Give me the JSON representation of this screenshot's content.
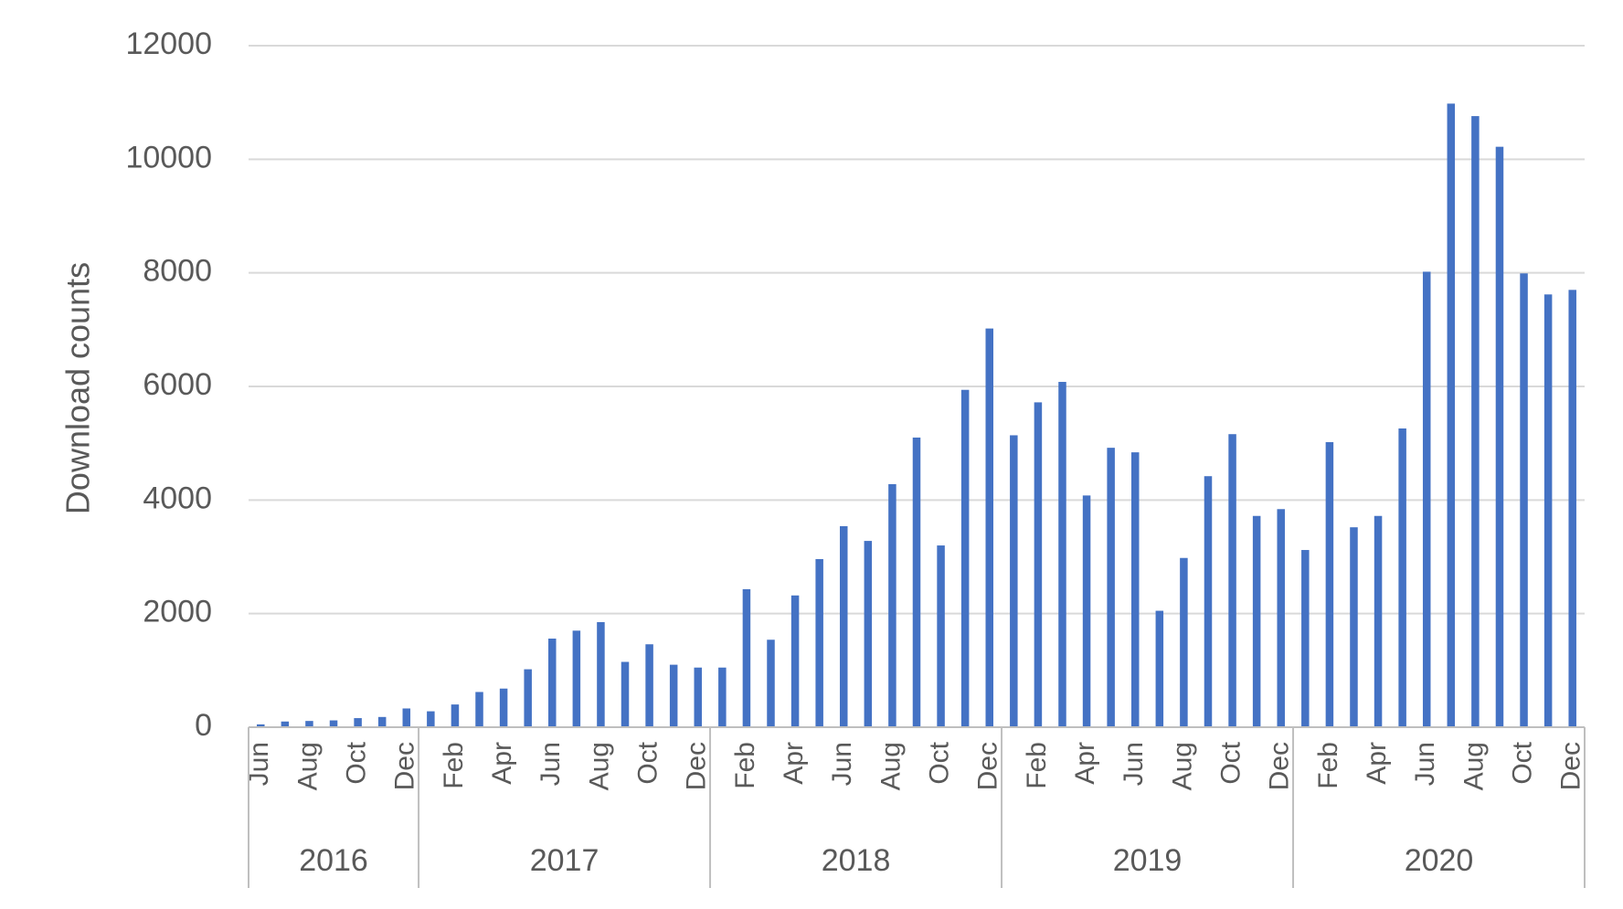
{
  "chart_data": {
    "type": "bar",
    "title": "",
    "xlabel": "",
    "ylabel": "Download counts",
    "ylim": [
      0,
      12000
    ],
    "yticks": [
      0,
      2000,
      4000,
      6000,
      8000,
      10000,
      12000
    ],
    "grid": true,
    "colors": {
      "bar": "#4472C4",
      "grid": "#d9d9d9",
      "axis": "#bfbfbf",
      "text": "#595959"
    },
    "categories": [
      "Jun",
      "Jul",
      "Aug",
      "Sep",
      "Oct",
      "Nov",
      "Dec",
      "Jan",
      "Feb",
      "Mar",
      "Apr",
      "May",
      "Jun",
      "Jul",
      "Aug",
      "Sep",
      "Oct",
      "Nov",
      "Dec",
      "Jan",
      "Feb",
      "Mar",
      "Apr",
      "May",
      "Jun",
      "Jul",
      "Aug",
      "Sep",
      "Oct",
      "Nov",
      "Dec",
      "Jan",
      "Feb",
      "Mar",
      "Apr",
      "May",
      "Jun",
      "Jul",
      "Aug",
      "Sep",
      "Oct",
      "Nov",
      "Dec",
      "Jan",
      "Feb",
      "Mar",
      "Apr",
      "May",
      "Jun",
      "Jul",
      "Aug",
      "Sep",
      "Oct",
      "Nov",
      "Dec"
    ],
    "shown_month_labels": [
      "Jun",
      "Aug",
      "Oct",
      "Dec",
      "Feb",
      "Apr",
      "Jun",
      "Aug",
      "Oct",
      "Dec",
      "Feb",
      "Apr",
      "Jun",
      "Aug",
      "Oct",
      "Dec",
      "Feb",
      "Apr",
      "Jun",
      "Aug",
      "Oct",
      "Dec",
      "Feb",
      "Apr",
      "Jun",
      "Aug",
      "Oct",
      "Dec"
    ],
    "years": [
      {
        "label": "2016",
        "count": 7
      },
      {
        "label": "2017",
        "count": 12
      },
      {
        "label": "2018",
        "count": 12
      },
      {
        "label": "2019",
        "count": 12
      },
      {
        "label": "2020",
        "count": 12
      }
    ],
    "series": [
      {
        "values": [
          50,
          100,
          110,
          120,
          160,
          180,
          330,
          280,
          400,
          620,
          680,
          1020,
          1560,
          1700,
          1850,
          1150,
          1460,
          1100,
          1050,
          1050,
          2430,
          1540,
          2320,
          2960,
          3540,
          3280,
          4280,
          5100,
          3200,
          5940,
          7020,
          5140,
          5720,
          6080,
          4080,
          4920,
          4840,
          2050,
          2980,
          4420,
          5160,
          3720,
          3840,
          3120,
          5020,
          3520,
          3720,
          5260,
          8020,
          10980,
          10760,
          10220,
          7990,
          7620,
          7700
        ]
      }
    ]
  }
}
